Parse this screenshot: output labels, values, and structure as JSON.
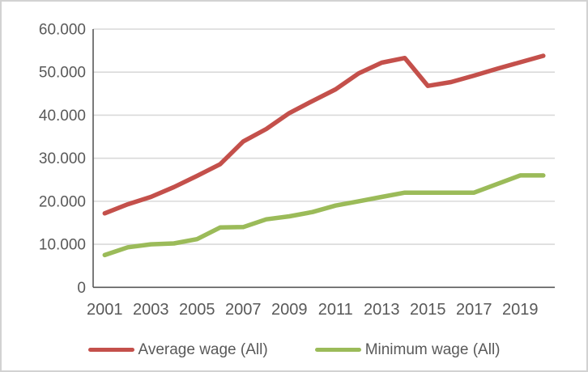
{
  "chart_data": {
    "type": "line",
    "title": "",
    "xlabel": "",
    "ylabel": "",
    "categories": [
      2001,
      2002,
      2003,
      2004,
      2005,
      2006,
      2007,
      2008,
      2009,
      2010,
      2011,
      2012,
      2013,
      2014,
      2015,
      2016,
      2017,
      2018,
      2019,
      2020
    ],
    "series": [
      {
        "name": "Average wage (All)",
        "color": "#c4504b",
        "values": [
          17200,
          19300,
          21000,
          23300,
          25900,
          28600,
          33900,
          36800,
          40500,
          43300,
          46000,
          49700,
          52200,
          53300,
          46800,
          47700,
          49200,
          50800,
          52300,
          53800
        ]
      },
      {
        "name": "Minimum wage (All)",
        "color": "#9bbb59",
        "values": [
          7500,
          9300,
          10000,
          10200,
          11200,
          13900,
          14000,
          15800,
          16500,
          17500,
          19000,
          20000,
          21000,
          22000,
          22000,
          22000,
          22000,
          24000,
          26000,
          26000
        ]
      }
    ],
    "ylim": [
      0,
      60000
    ],
    "y_tick_step": 10000,
    "y_tick_labels": [
      "0",
      "10.000",
      "20.000",
      "30.000",
      "40.000",
      "50.000",
      "60.000"
    ],
    "x_tick_labels": [
      "2001",
      "2003",
      "2005",
      "2007",
      "2009",
      "2011",
      "2013",
      "2015",
      "2017",
      "2019"
    ],
    "grid": true,
    "legend_position": "bottom"
  },
  "style": {
    "gridline_color": "#d9d9d9",
    "axis_color": "#595959",
    "tick_label_color": "#595959",
    "line_width": 5.5
  }
}
